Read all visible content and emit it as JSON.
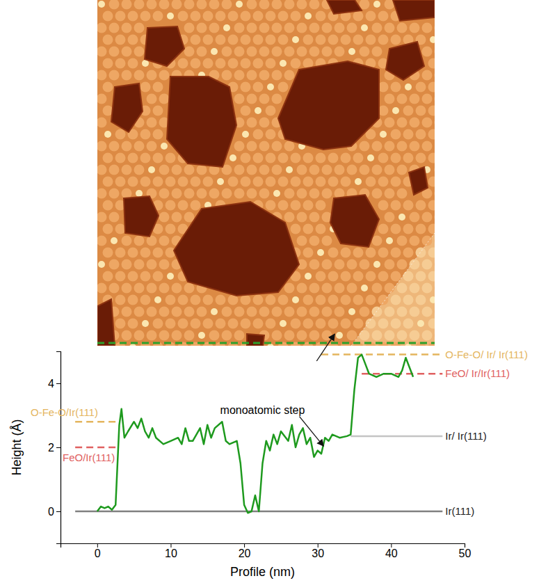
{
  "chart_data": {
    "type": "line",
    "x_label": "Profile (nm)",
    "y_label": "Height (Å)",
    "xlim": [
      -5,
      50
    ],
    "ylim": [
      -1,
      5
    ],
    "xticks": [
      0,
      10,
      20,
      30,
      40,
      50
    ],
    "yticks": [
      0,
      2,
      4
    ],
    "x": [
      0,
      0.5,
      1,
      1.5,
      2,
      2.5,
      3,
      3.3,
      3.7,
      4.2,
      5,
      5.5,
      6,
      6.5,
      7,
      7.5,
      8,
      9,
      10,
      11,
      11.5,
      12,
      12.5,
      13,
      14,
      14.5,
      15,
      15.5,
      16,
      17,
      17.5,
      18,
      19,
      19.5,
      20,
      20.5,
      21,
      21.5,
      22,
      22.5,
      23,
      23.5,
      24,
      24.5,
      25,
      26,
      26.5,
      27,
      27.5,
      28,
      28.5,
      29,
      29.5,
      30,
      30.5,
      31,
      31.5,
      32,
      33,
      34,
      34.5,
      35,
      35.5,
      36,
      36.5,
      37,
      38,
      39,
      40,
      41,
      41.5,
      42,
      42.5,
      43
    ],
    "series": [
      {
        "color": "#1e9a1e",
        "values": [
          0,
          0.15,
          0.1,
          0.15,
          0.05,
          0.2,
          2.7,
          3.2,
          2.3,
          2.5,
          2.8,
          2.6,
          2.9,
          2.5,
          2.3,
          2.6,
          2.3,
          2.1,
          2.2,
          2.3,
          2.1,
          2.6,
          2.2,
          2.2,
          2.6,
          2.1,
          2.7,
          2.3,
          2.6,
          2.8,
          2.2,
          2.1,
          2.2,
          1.5,
          0.2,
          -0.05,
          0,
          0.5,
          0,
          1.5,
          2.2,
          1.9,
          2.4,
          2.1,
          2.5,
          2.2,
          2.7,
          2,
          2.4,
          2.6,
          2.1,
          2.3,
          1.7,
          1.9,
          1.8,
          2.3,
          2.2,
          2.4,
          2.3,
          2.35,
          2.4,
          3.8,
          4.8,
          4.9,
          4.6,
          4.3,
          4.2,
          4.3,
          4.3,
          4.2,
          4.4,
          4.8,
          4.5,
          4.2
        ]
      }
    ],
    "reference_lines": [
      {
        "label": "O-Fe-O/Ir(111)",
        "value": 2.8,
        "x_range": [
          -3,
          2.5
        ],
        "color": "#e4b55e",
        "line_style": "dashed"
      },
      {
        "label": "FeO/Ir(111)",
        "value": 2.0,
        "x_range": [
          -3,
          2.5
        ],
        "color": "#e06060",
        "line_style": "dashed"
      },
      {
        "label": "O-Fe-O/ Ir/ Ir(111)",
        "value": 4.9,
        "x_range": [
          30.5,
          47
        ],
        "color": "#e4b55e",
        "line_style": "dashed"
      },
      {
        "label": "FeO/ Ir/Ir(111)",
        "value": 4.3,
        "x_range": [
          36,
          47
        ],
        "color": "#e06060",
        "line_style": "dashed"
      },
      {
        "label": "Ir/ Ir(111)",
        "value": 2.35,
        "x_range": [
          34.5,
          47
        ],
        "color": "#c4c4c4",
        "line_style": "solid"
      },
      {
        "label": "Ir(111)",
        "value": 0,
        "x_range": [
          -3,
          47
        ],
        "color": "#808080",
        "line_style": "solid"
      }
    ],
    "annotations": [
      {
        "text": "monoatomic step",
        "x": 22.5,
        "y": 3.05,
        "arrow_to": [
          31,
          1.95
        ]
      }
    ]
  }
}
